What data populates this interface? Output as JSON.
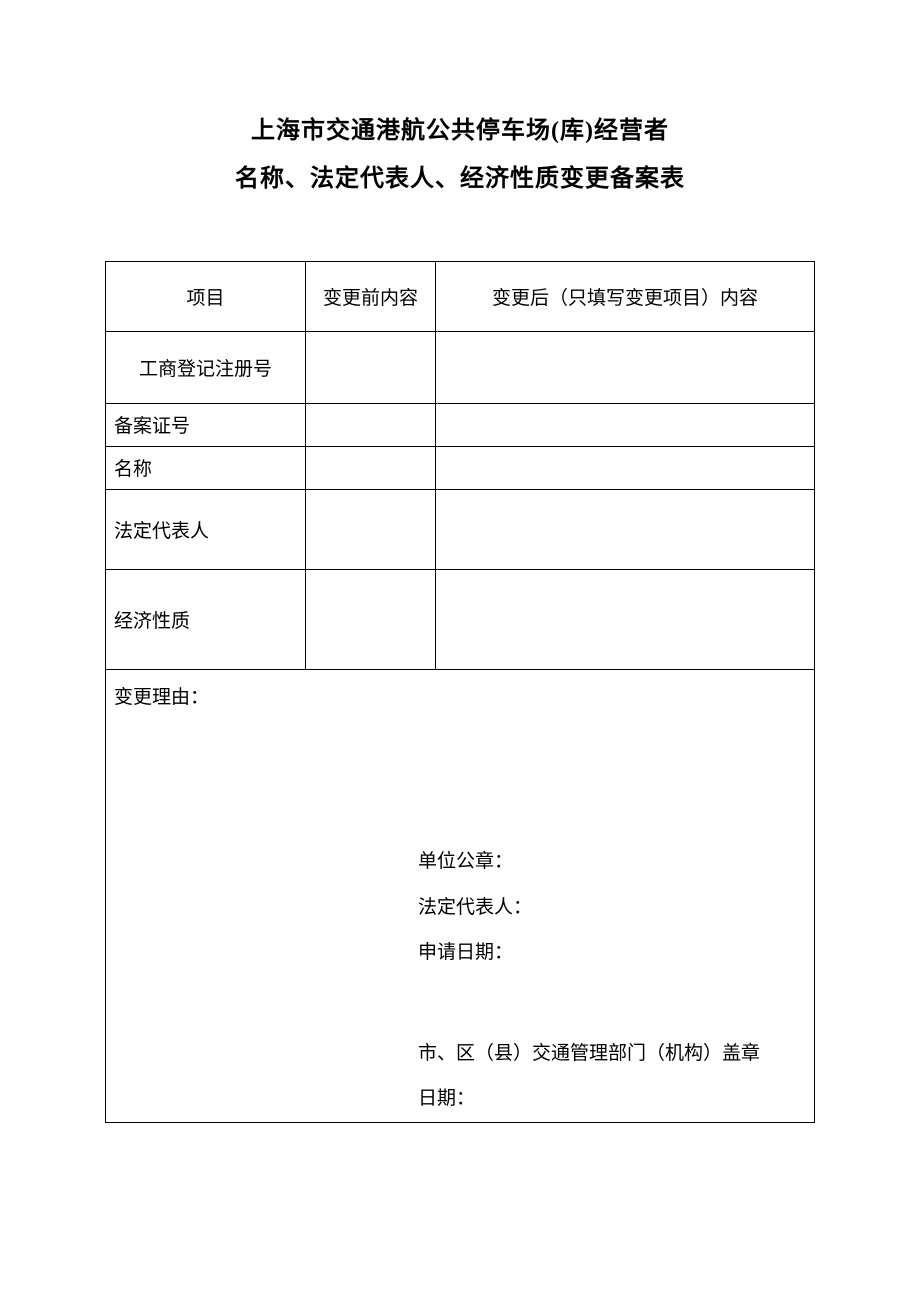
{
  "title": {
    "line1": "上海市交通港航公共停车场(库)经营者",
    "line2": "名称、法定代表人、经济性质变更备案表"
  },
  "headers": {
    "col1": "项目",
    "col2": "变更前内容",
    "col3": "变更后（只填写变更项目）内容"
  },
  "rows": {
    "registration": {
      "label": "工商登记注册号",
      "before": "",
      "after": ""
    },
    "record_no": {
      "label": "备案证号",
      "before": "",
      "after": ""
    },
    "name": {
      "label": "名称",
      "before": "",
      "after": ""
    },
    "legal_rep": {
      "label": "法定代表人",
      "before": "",
      "after": ""
    },
    "economic": {
      "label": "经济性质",
      "before": "",
      "after": ""
    }
  },
  "reason": {
    "label": "变更理由：",
    "stamp_unit": "单位公章：",
    "stamp_legal": "法定代表人：",
    "stamp_date": "申请日期：",
    "authority": "市、区（县）交通管理部门（机构）盖章",
    "authority_date": "日期："
  },
  "styling": {
    "background_color": "#ffffff",
    "text_color": "#000000",
    "border_color": "#000000",
    "title_fontsize": 24,
    "body_fontsize": 19,
    "font_family": "SimSun"
  }
}
